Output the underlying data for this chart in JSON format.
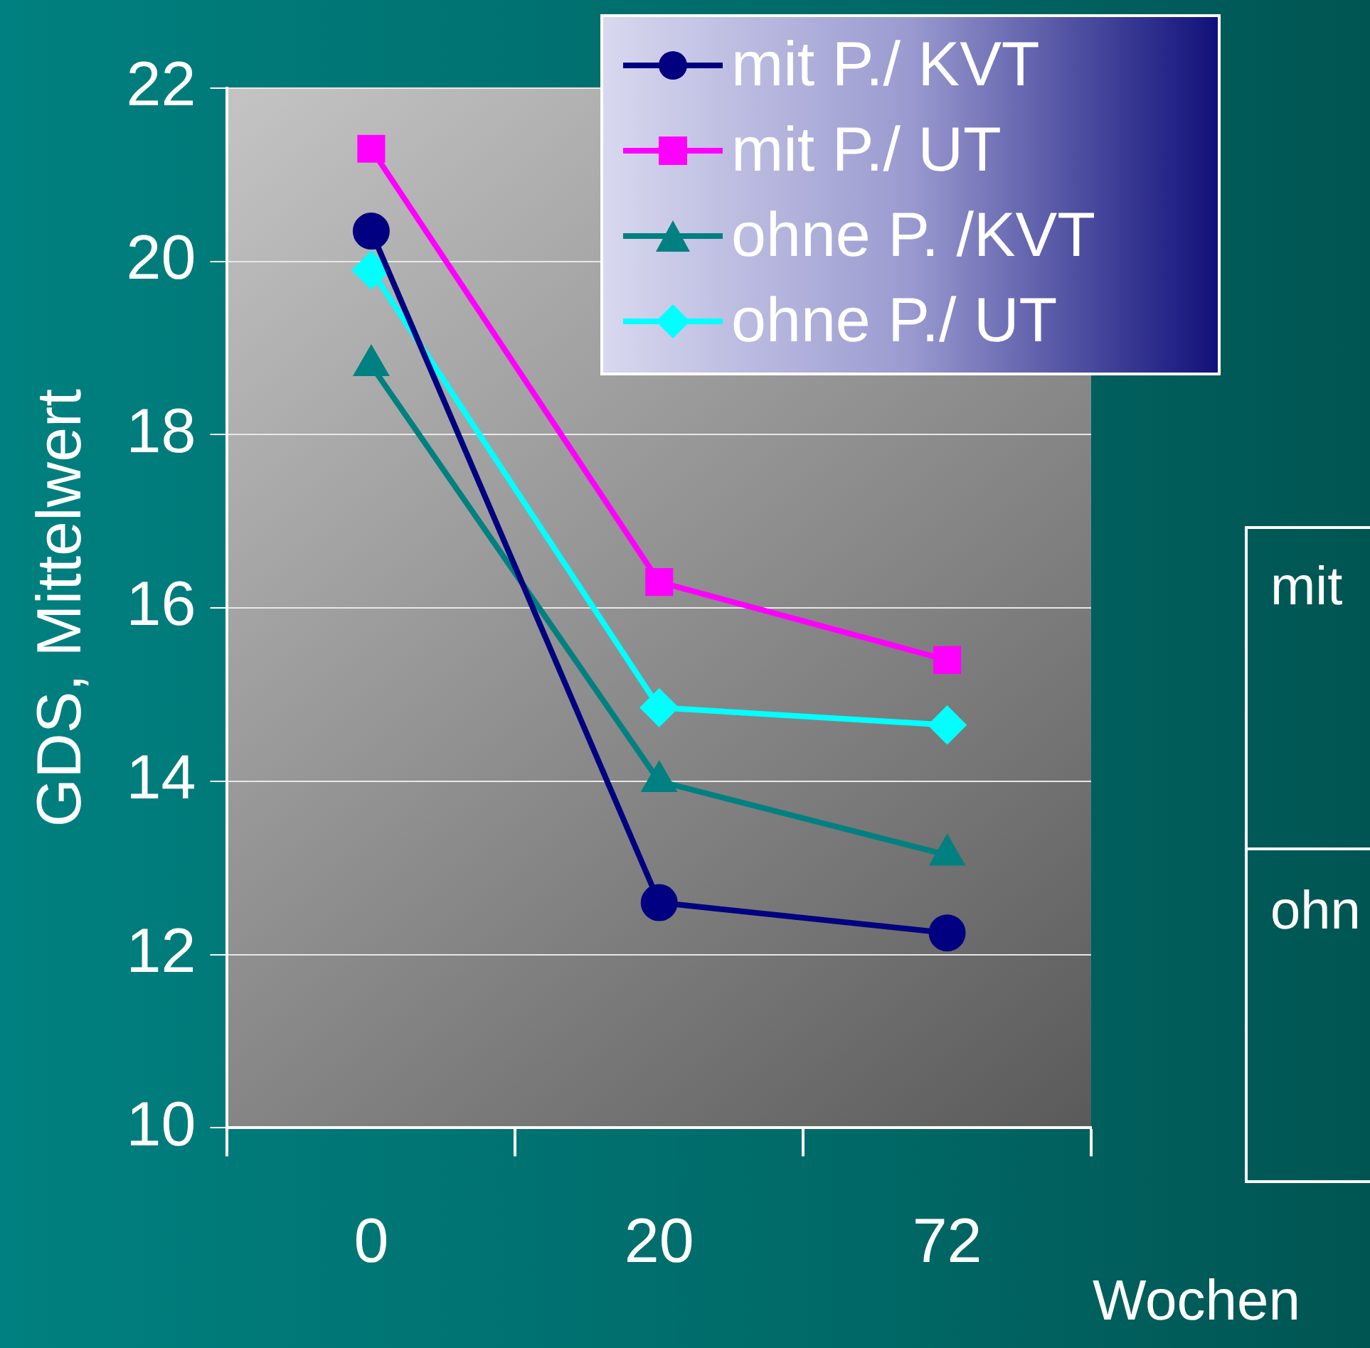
{
  "chart_data": {
    "type": "line",
    "xlabel": "Wochen",
    "ylabel": "GDS, Mittelwert",
    "categories": [
      "0",
      "20",
      "72"
    ],
    "series": [
      {
        "name": "mit P./ KVT",
        "color": "#000080",
        "marker": "circle",
        "values": [
          20.35,
          12.6,
          12.25
        ]
      },
      {
        "name": "mit P./ UT",
        "color": "#ff00ff",
        "marker": "square",
        "values": [
          21.3,
          16.3,
          15.4
        ]
      },
      {
        "name": "ohne P. /KVT",
        "color": "#008080",
        "marker": "triangle",
        "values": [
          18.8,
          14.0,
          13.15
        ]
      },
      {
        "name": "ohne P./ UT",
        "color": "#00ffff",
        "marker": "diamond",
        "values": [
          19.9,
          14.85,
          14.65
        ]
      }
    ],
    "ylim": [
      10,
      22
    ],
    "yticks": [
      10,
      12,
      14,
      16,
      18,
      20,
      22
    ],
    "grid": "y",
    "legend": "top right",
    "annotations": [
      "mit",
      "ohn"
    ]
  }
}
